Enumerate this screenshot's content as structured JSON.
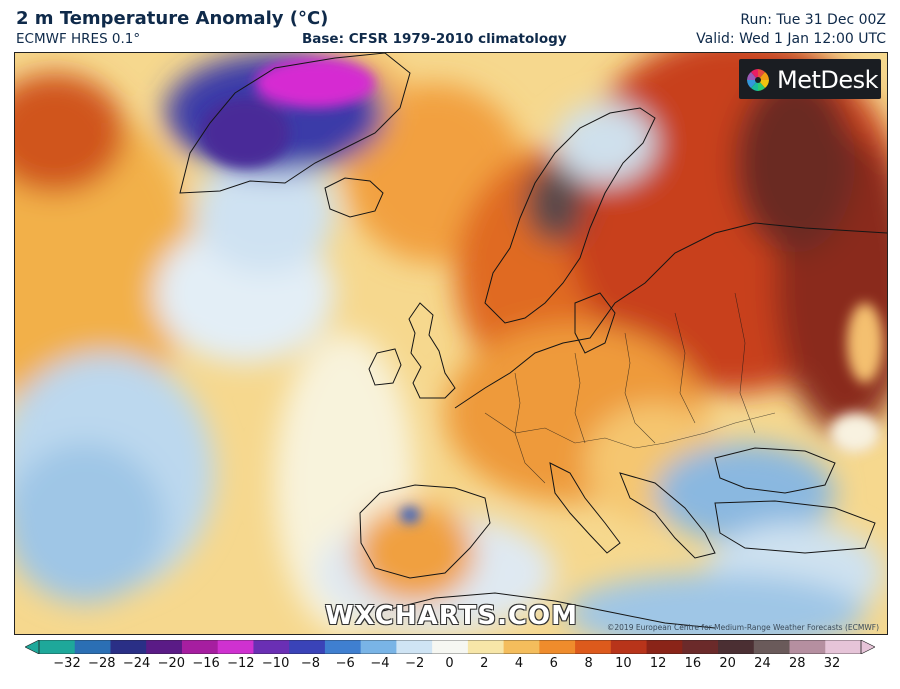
{
  "header": {
    "title": "2 m Temperature Anomaly (°C)",
    "model": "ECMWF HRES 0.1°",
    "base": "Base: CFSR 1979-2010 climatology",
    "run": "Run: Tue 31 Dec 00Z",
    "valid": "Valid: Wed 1 Jan 12:00 UTC"
  },
  "map": {
    "logo_text": "MetDesk",
    "watermark": "WXCHARTS.COM",
    "copyright": "©2019 European Centre for Medium-Range Weather Forecasts (ECMWF)",
    "icon": "metdesk-logo-icon"
  },
  "colorbar": {
    "labels": [
      "−32",
      "−28",
      "−24",
      "−20",
      "−16",
      "−12",
      "−10",
      "−8",
      "−6",
      "−4",
      "−2",
      "0",
      "2",
      "4",
      "6",
      "8",
      "10",
      "12",
      "16",
      "20",
      "24",
      "28",
      "32"
    ],
    "colors": [
      "#1ea89a",
      "#2b6fb4",
      "#2a2f86",
      "#5a1b86",
      "#a61ea0",
      "#cf31d0",
      "#6a2fb4",
      "#3a43b8",
      "#3f7fd0",
      "#79b4e6",
      "#cfe4f4",
      "#f6f7f2",
      "#f7e6a8",
      "#f4bd5c",
      "#ef8c2c",
      "#dd5a1c",
      "#b8341a",
      "#8a2418",
      "#6b2a2a",
      "#4b2f33",
      "#6a5a5a",
      "#b58fa0",
      "#e6c4d8"
    ]
  }
}
